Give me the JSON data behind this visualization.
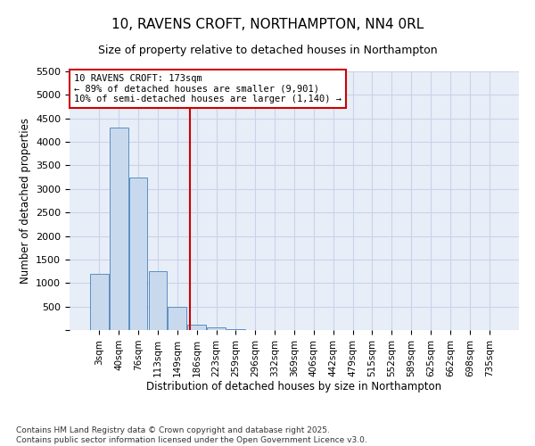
{
  "title": "10, RAVENS CROFT, NORTHAMPTON, NN4 0RL",
  "subtitle": "Size of property relative to detached houses in Northampton",
  "xlabel": "Distribution of detached houses by size in Northampton",
  "ylabel": "Number of detached properties",
  "categories": [
    "3sqm",
    "40sqm",
    "76sqm",
    "113sqm",
    "149sqm",
    "186sqm",
    "223sqm",
    "259sqm",
    "296sqm",
    "332sqm",
    "369sqm",
    "406sqm",
    "442sqm",
    "479sqm",
    "515sqm",
    "552sqm",
    "589sqm",
    "625sqm",
    "662sqm",
    "698sqm",
    "735sqm"
  ],
  "bar_heights": [
    1200,
    4300,
    3250,
    1250,
    500,
    120,
    55,
    20,
    5,
    0,
    0,
    0,
    0,
    0,
    0,
    0,
    0,
    0,
    0,
    0,
    0
  ],
  "bar_color": "#c9d9ed",
  "bar_edge_color": "#5a8fc0",
  "ylim": [
    0,
    5500
  ],
  "yticks": [
    0,
    500,
    1000,
    1500,
    2000,
    2500,
    3000,
    3500,
    4000,
    4500,
    5000,
    5500
  ],
  "grid_color": "#c8d4e8",
  "background_color": "#e8eef8",
  "vline_color": "#cc0000",
  "annotation_text": "10 RAVENS CROFT: 173sqm\n← 89% of detached houses are smaller (9,901)\n10% of semi-detached houses are larger (1,140) →",
  "annotation_box_color": "#ffffff",
  "annotation_border_color": "#cc0000",
  "footer_text": "Contains HM Land Registry data © Crown copyright and database right 2025.\nContains public sector information licensed under the Open Government Licence v3.0."
}
